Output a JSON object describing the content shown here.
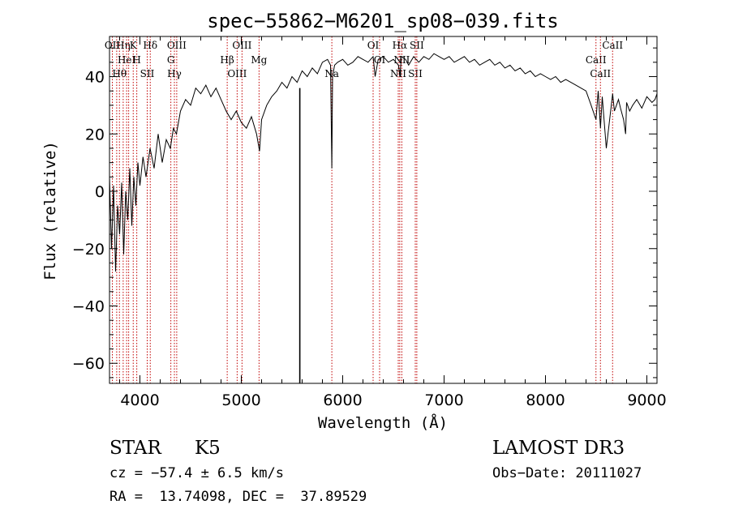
{
  "chart_data": {
    "type": "line",
    "title": "spec−55862−M6201_sp08−039.fits",
    "xlabel": "Wavelength (Å)",
    "ylabel": "Flux (relative)",
    "xlim": [
      3700,
      9100
    ],
    "ylim": [
      -67,
      54
    ],
    "xticks": [
      4000,
      5000,
      6000,
      7000,
      8000,
      9000
    ],
    "yticks": [
      -60,
      -40,
      -20,
      0,
      20,
      40
    ],
    "ytick_labels": [
      "−60",
      "−40",
      "−20",
      "0",
      "20",
      "40"
    ],
    "series": [
      {
        "name": "flux",
        "x": [
          3700,
          3720,
          3740,
          3760,
          3780,
          3800,
          3820,
          3840,
          3860,
          3880,
          3900,
          3920,
          3940,
          3960,
          3980,
          4000,
          4030,
          4060,
          4100,
          4140,
          4180,
          4220,
          4260,
          4300,
          4330,
          4360,
          4400,
          4450,
          4500,
          4550,
          4600,
          4650,
          4700,
          4750,
          4800,
          4850,
          4900,
          4950,
          5000,
          5050,
          5100,
          5150,
          5180,
          5200,
          5250,
          5300,
          5350,
          5400,
          5450,
          5500,
          5550,
          5600,
          5650,
          5700,
          5750,
          5800,
          5850,
          5880,
          5893,
          5900,
          5920,
          5950,
          6000,
          6050,
          6100,
          6150,
          6200,
          6250,
          6300,
          6320,
          6350,
          6400,
          6450,
          6500,
          6550,
          6563,
          6580,
          6620,
          6650,
          6700,
          6750,
          6800,
          6850,
          6900,
          6950,
          7000,
          7050,
          7100,
          7150,
          7200,
          7250,
          7300,
          7350,
          7400,
          7450,
          7500,
          7550,
          7600,
          7650,
          7700,
          7750,
          7800,
          7850,
          7900,
          7950,
          8000,
          8050,
          8100,
          8150,
          8200,
          8250,
          8300,
          8350,
          8400,
          8450,
          8498,
          8520,
          8542,
          8560,
          8600,
          8662,
          8680,
          8700,
          8720,
          8740,
          8770,
          8790,
          8800,
          8830,
          8860,
          8900,
          8950,
          9000,
          9050,
          9080,
          9100
        ],
        "y": [
          5,
          -20,
          2,
          -28,
          -5,
          -15,
          3,
          -22,
          0,
          -10,
          8,
          -12,
          5,
          -5,
          10,
          2,
          12,
          5,
          15,
          8,
          20,
          10,
          18,
          15,
          22,
          20,
          28,
          32,
          30,
          36,
          34,
          37,
          33,
          36,
          32,
          28,
          25,
          28,
          24,
          22,
          26,
          20,
          14,
          25,
          30,
          33,
          35,
          38,
          36,
          40,
          38,
          42,
          40,
          43,
          41,
          45,
          46,
          44,
          8,
          40,
          44,
          45,
          46,
          44,
          45,
          47,
          46,
          45,
          47,
          40,
          46,
          47,
          45,
          46,
          44,
          40,
          47,
          46,
          44,
          47,
          45,
          47,
          46,
          48,
          47,
          46,
          47,
          45,
          46,
          47,
          45,
          46,
          44,
          45,
          46,
          44,
          45,
          43,
          44,
          42,
          43,
          41,
          42,
          40,
          41,
          40,
          39,
          40,
          38,
          39,
          38,
          37,
          36,
          35,
          30,
          25,
          35,
          22,
          33,
          15,
          34,
          28,
          30,
          32,
          29,
          25,
          20,
          31,
          28,
          30,
          32,
          29,
          33,
          31,
          32,
          34
        ]
      }
    ],
    "spikes": [
      {
        "x": 5577,
        "y_min": -67,
        "y_max": 36
      }
    ],
    "line_markers": [
      {
        "x": 3728,
        "labels": [
          "OII"
        ]
      },
      {
        "x": 3771,
        "labels": []
      },
      {
        "x": 3798,
        "labels": [
          "Hθ"
        ]
      },
      {
        "x": 3835,
        "labels": [
          "Hη"
        ]
      },
      {
        "x": 3869,
        "labels": [
          "HeI"
        ]
      },
      {
        "x": 3889,
        "labels": []
      },
      {
        "x": 3934,
        "labels": [
          "K"
        ]
      },
      {
        "x": 3969,
        "labels": [
          "H"
        ]
      },
      {
        "x": 4072,
        "labels": [
          "SII"
        ]
      },
      {
        "x": 4102,
        "labels": [
          "Hδ"
        ]
      },
      {
        "x": 4305,
        "labels": [
          "G"
        ]
      },
      {
        "x": 4340,
        "labels": [
          "Hγ"
        ]
      },
      {
        "x": 4363,
        "labels": [
          "OIII"
        ]
      },
      {
        "x": 4861,
        "labels": [
          "Hβ"
        ]
      },
      {
        "x": 4959,
        "labels": [
          "OIII"
        ]
      },
      {
        "x": 5007,
        "labels": [
          "OIII"
        ]
      },
      {
        "x": 5175,
        "labels": [
          "Mg"
        ]
      },
      {
        "x": 5893,
        "labels": [
          "Na"
        ]
      },
      {
        "x": 6300,
        "labels": [
          "OI"
        ]
      },
      {
        "x": 6364,
        "labels": [
          "OI"
        ]
      },
      {
        "x": 6548,
        "labels": [
          "NII"
        ]
      },
      {
        "x": 6563,
        "labels": [
          "Hα"
        ]
      },
      {
        "x": 6583,
        "labels": [
          "NII"
        ]
      },
      {
        "x": 6716,
        "labels": [
          "SII"
        ]
      },
      {
        "x": 6731,
        "labels": [
          "SII"
        ]
      },
      {
        "x": 8498,
        "labels": [
          "CaII"
        ]
      },
      {
        "x": 8542,
        "labels": [
          "CaII"
        ]
      },
      {
        "x": 8662,
        "labels": [
          "CaII"
        ]
      }
    ]
  },
  "info": {
    "class": "STAR",
    "subclass": "K5",
    "survey": "LAMOST DR3",
    "cz": "cz = −57.4 ± 6.5 km/s",
    "obs_date": "Obs−Date: 20111027",
    "radec": "RA =  13.74098, DEC =  37.89529"
  },
  "colors": {
    "line": "#000000",
    "marker": "#c00000",
    "background": "#ffffff"
  }
}
